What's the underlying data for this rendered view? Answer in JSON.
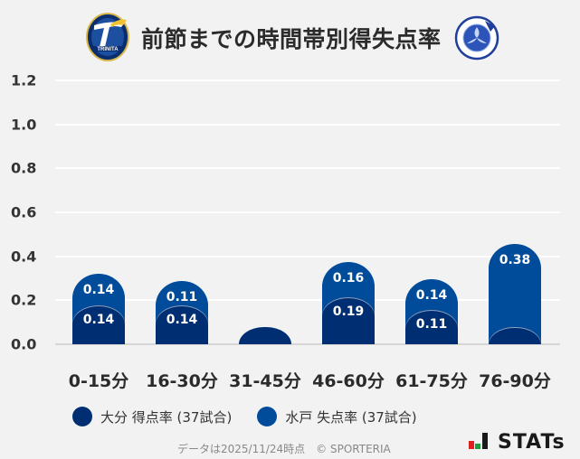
{
  "header": {
    "title": "前節までの時間帯別得失点率",
    "left_logo": "oita-trinita-crest-icon",
    "right_logo": "mito-hollyhock-crest-icon"
  },
  "colors": {
    "oita": "#002e73",
    "mito": "#004c9a",
    "background": "#f2f2f2",
    "gridline": "#ffffff"
  },
  "chart_data": {
    "type": "bar",
    "stacked": true,
    "title": "前節までの時間帯別得失点率",
    "xlabel": "",
    "ylabel": "",
    "ylim": [
      0,
      1.2
    ],
    "yticks": [
      "1.2",
      "1.0",
      "0.8",
      "0.6",
      "0.4",
      "0.2",
      "0.0"
    ],
    "grid": true,
    "legend_position": "bottom",
    "categories": [
      "0-15分",
      "16-30分",
      "31-45分",
      "46-60分",
      "61-75分",
      "76-90分"
    ],
    "series": [
      {
        "name": "大分 得点率 (37試合)",
        "color": "#002e73",
        "values": [
          0.14,
          0.14,
          0.0,
          0.19,
          0.11,
          0.0
        ],
        "labels": [
          "0.14",
          "0.14",
          "",
          "0.19",
          "0.11",
          ""
        ]
      },
      {
        "name": "水戸 失点率 (37試合)",
        "color": "#004c9a",
        "values": [
          0.14,
          0.11,
          0.0,
          0.16,
          0.14,
          0.38
        ],
        "labels": [
          "0.14",
          "0.11",
          "",
          "0.16",
          "0.14",
          "0.38"
        ]
      }
    ]
  },
  "legend": {
    "items": [
      {
        "label": "大分 得点率 (37試合)",
        "color": "#002e73"
      },
      {
        "label": "水戸 失点率 (37試合)",
        "color": "#004c9a"
      }
    ]
  },
  "footer": {
    "note": "データは2025/11/24時点　© SPORTERIA",
    "brand": "STATs"
  }
}
